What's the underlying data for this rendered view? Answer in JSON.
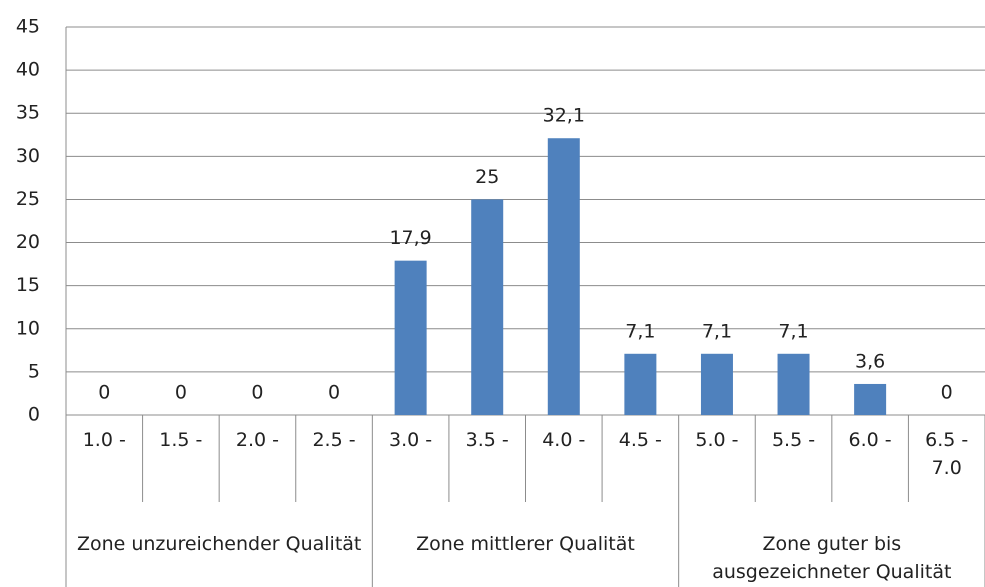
{
  "chart_data": {
    "type": "bar",
    "categories": [
      "1.0 -",
      "1.5 -",
      "2.0 -",
      "2.5 -",
      "3.0 -",
      "3.5 -",
      "4.0 -",
      "4.5 -",
      "5.0 -",
      "5.5 -",
      "6.0 -",
      "6.5 - 7.0"
    ],
    "values": [
      0,
      0,
      0,
      0,
      17.9,
      25,
      32.1,
      7.1,
      7.1,
      7.1,
      3.6,
      0
    ],
    "value_labels": [
      "0",
      "0",
      "0",
      "0",
      "17,9",
      "25",
      "32,1",
      "7,1",
      "7,1",
      "7,1",
      "3,6",
      "0"
    ],
    "groups": [
      "Zone unzureichender Qualität",
      "Zone mittlerer Qualität",
      "Zone guter bis ausgezeichneter Qualität"
    ],
    "color": "#4f81bd",
    "ylim": [
      0,
      45
    ],
    "yticks": [
      0,
      5,
      10,
      15,
      20,
      25,
      30,
      35,
      40,
      45
    ],
    "grid": true
  }
}
